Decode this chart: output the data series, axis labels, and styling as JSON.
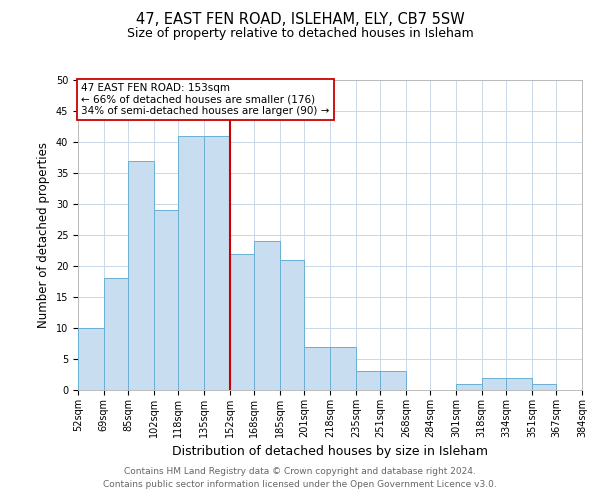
{
  "title": "47, EAST FEN ROAD, ISLEHAM, ELY, CB7 5SW",
  "subtitle": "Size of property relative to detached houses in Isleham",
  "xlabel": "Distribution of detached houses by size in Isleham",
  "ylabel": "Number of detached properties",
  "bin_edges": [
    52,
    69,
    85,
    102,
    118,
    135,
    152,
    168,
    185,
    201,
    218,
    235,
    251,
    268,
    284,
    301,
    318,
    334,
    351,
    367,
    384
  ],
  "bin_labels": [
    "52sqm",
    "69sqm",
    "85sqm",
    "102sqm",
    "118sqm",
    "135sqm",
    "152sqm",
    "168sqm",
    "185sqm",
    "201sqm",
    "218sqm",
    "235sqm",
    "251sqm",
    "268sqm",
    "284sqm",
    "301sqm",
    "318sqm",
    "334sqm",
    "351sqm",
    "367sqm",
    "384sqm"
  ],
  "counts": [
    10,
    18,
    37,
    29,
    41,
    41,
    22,
    24,
    21,
    7,
    7,
    3,
    3,
    0,
    0,
    1,
    2,
    2,
    1,
    0
  ],
  "bar_color": "#c8ddef",
  "bar_edge_color": "#6aafd4",
  "vline_x": 152,
  "vline_color": "#cc0000",
  "annotation_line1": "47 EAST FEN ROAD: 153sqm",
  "annotation_line2": "← 66% of detached houses are smaller (176)",
  "annotation_line3": "34% of semi-detached houses are larger (90) →",
  "annotation_box_color": "#ffffff",
  "annotation_box_edge_color": "#cc0000",
  "ylim": [
    0,
    50
  ],
  "yticks": [
    0,
    5,
    10,
    15,
    20,
    25,
    30,
    35,
    40,
    45,
    50
  ],
  "footnote_line1": "Contains HM Land Registry data © Crown copyright and database right 2024.",
  "footnote_line2": "Contains public sector information licensed under the Open Government Licence v3.0.",
  "background_color": "#ffffff",
  "grid_color": "#c8d8e8",
  "title_fontsize": 10.5,
  "subtitle_fontsize": 9,
  "ylabel_fontsize": 8.5,
  "xlabel_fontsize": 9,
  "tick_fontsize": 7,
  "annotation_fontsize": 7.5,
  "footnote_fontsize": 6.5
}
